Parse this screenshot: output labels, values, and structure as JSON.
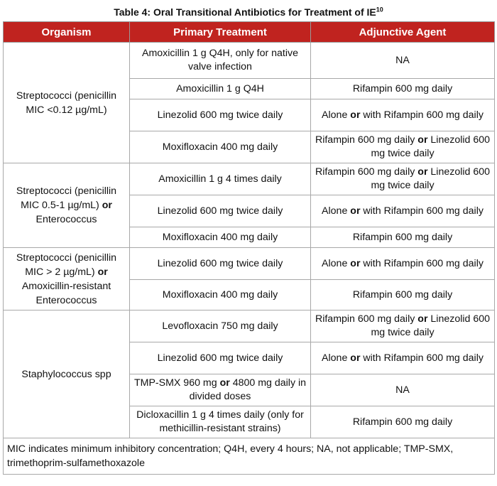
{
  "title": {
    "text": "Table 4: Oral Transitional Antibiotics for Treatment of IE",
    "superscript": "10"
  },
  "headers": [
    "Organism",
    "Primary Treatment",
    "Adjunctive Agent"
  ],
  "groups": [
    {
      "organism": [
        {
          "t": "Streptococci (penicillin MIC <0.12 µg/mL)"
        }
      ],
      "rows": [
        {
          "h": 51,
          "primary": [
            {
              "t": "Amoxicillin 1 g Q4H, only for native valve infection"
            }
          ],
          "adjunct": [
            {
              "t": "NA"
            }
          ]
        },
        {
          "h": 29,
          "primary": [
            {
              "t": "Amoxicillin 1 g Q4H"
            }
          ],
          "adjunct": [
            {
              "t": "Rifampin 600 mg daily"
            }
          ]
        },
        {
          "h": 45,
          "primary": [
            {
              "t": "Linezolid 600 mg twice daily"
            }
          ],
          "adjunct": [
            {
              "t": "Alone "
            },
            {
              "t": "or",
              "b": true
            },
            {
              "t": " with Rifampin 600 mg daily"
            }
          ]
        },
        {
          "h": 45,
          "primary": [
            {
              "t": "Moxifloxacin 400 mg daily"
            }
          ],
          "adjunct": [
            {
              "t": "Rifampin 600 mg daily "
            },
            {
              "t": "or",
              "b": true
            },
            {
              "t": " Linezolid 600 mg twice daily"
            }
          ]
        }
      ]
    },
    {
      "organism": [
        {
          "t": "Streptococci (penicillin MIC 0.5-1 µg/mL) "
        },
        {
          "t": "or",
          "b": true
        },
        {
          "t": " Enterococcus"
        }
      ],
      "rows": [
        {
          "h": 45,
          "primary": [
            {
              "t": "Amoxicillin 1 g 4 times daily"
            }
          ],
          "adjunct": [
            {
              "t": "Rifampin 600 mg daily "
            },
            {
              "t": "or",
              "b": true
            },
            {
              "t": " Linezolid 600 mg twice daily"
            }
          ]
        },
        {
          "h": 45,
          "primary": [
            {
              "t": "Linezolid 600 mg twice daily"
            }
          ],
          "adjunct": [
            {
              "t": "Alone "
            },
            {
              "t": "or",
              "b": true
            },
            {
              "t": " with Rifampin 600 mg daily"
            }
          ]
        },
        {
          "h": 29,
          "primary": [
            {
              "t": "Moxifloxacin 400 mg daily"
            }
          ],
          "adjunct": [
            {
              "t": "Rifampin 600 mg daily"
            }
          ]
        }
      ]
    },
    {
      "organism": [
        {
          "t": "Streptococci (penicillin MIC > 2 µg/mL) "
        },
        {
          "t": "or",
          "b": true
        },
        {
          "t": " Amoxicillin-resistant Enterococcus"
        }
      ],
      "rows": [
        {
          "h": 45,
          "primary": [
            {
              "t": "Linezolid 600 mg twice daily"
            }
          ],
          "adjunct": [
            {
              "t": "Alone "
            },
            {
              "t": "or",
              "b": true
            },
            {
              "t": " with Rifampin 600 mg daily"
            }
          ]
        },
        {
          "h": 43,
          "primary": [
            {
              "t": "Moxifloxacin 400 mg daily"
            }
          ],
          "adjunct": [
            {
              "t": "Rifampin 600 mg daily"
            }
          ]
        }
      ]
    },
    {
      "organism": [
        {
          "t": "Staphylococcus spp"
        }
      ],
      "rows": [
        {
          "h": 45,
          "primary": [
            {
              "t": "Levofloxacin 750 mg daily"
            }
          ],
          "adjunct": [
            {
              "t": "Rifampin 600 mg daily "
            },
            {
              "t": "or",
              "b": true
            },
            {
              "t": " Linezolid 600 mg twice daily"
            }
          ]
        },
        {
          "h": 45,
          "primary": [
            {
              "t": "Linezolid 600 mg twice daily"
            }
          ],
          "adjunct": [
            {
              "t": "Alone "
            },
            {
              "t": "or",
              "b": true
            },
            {
              "t": " with Rifampin 600 mg daily"
            }
          ]
        },
        {
          "h": 45,
          "primary": [
            {
              "t": "TMP-SMX 960 mg "
            },
            {
              "t": "or",
              "b": true
            },
            {
              "t": " 4800 mg daily in divided doses"
            }
          ],
          "adjunct": [
            {
              "t": "NA"
            }
          ]
        },
        {
          "h": 45,
          "primary": [
            {
              "t": "Dicloxacillin 1 g 4 times daily (only for methicillin-resistant strains)"
            }
          ],
          "adjunct": [
            {
              "t": "Rifampin 600 mg daily"
            }
          ]
        }
      ]
    }
  ],
  "footnote": "MIC indicates minimum inhibitory concentration; Q4H, every 4 hours; NA, not applicable; TMP-SMX, trimethoprim-sulfamethoxazole"
}
